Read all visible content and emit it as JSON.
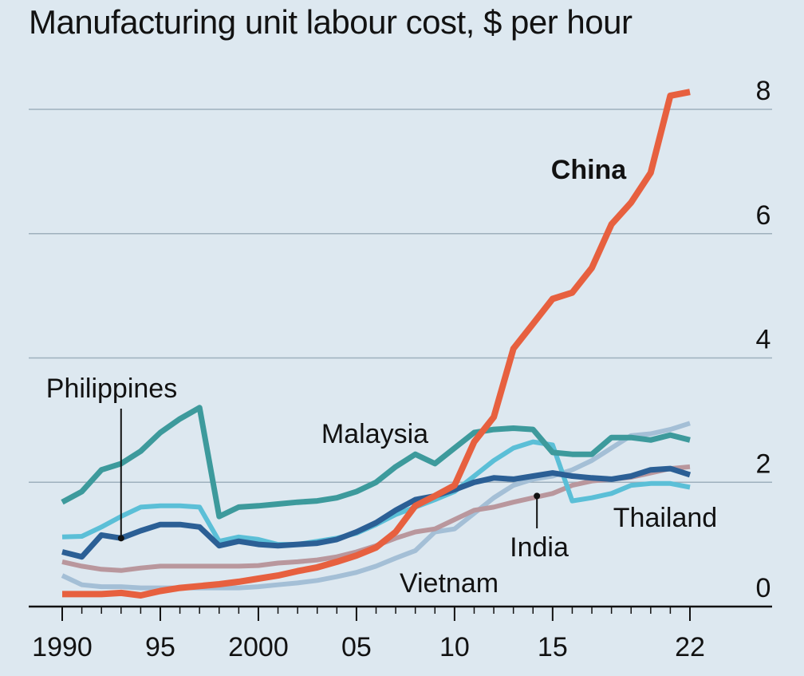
{
  "chart_data": {
    "type": "line",
    "title": "Manufacturing unit labour cost, $ per hour",
    "xlabel": "",
    "ylabel": "",
    "xlim": [
      1990,
      2022
    ],
    "ylim": [
      0,
      8
    ],
    "grid": true,
    "y_axis_side": "right",
    "x_ticks": [
      {
        "value": 1990,
        "label": "1990"
      },
      {
        "value": 1995,
        "label": "95"
      },
      {
        "value": 2000,
        "label": "2000"
      },
      {
        "value": 2005,
        "label": "05"
      },
      {
        "value": 2010,
        "label": "10"
      },
      {
        "value": 2015,
        "label": "15"
      },
      {
        "value": 2022,
        "label": "22"
      }
    ],
    "x_minor_ticks": [
      1991,
      1992,
      1993,
      1994,
      1996,
      1997,
      1998,
      1999,
      2001,
      2002,
      2003,
      2004,
      2006,
      2007,
      2008,
      2009,
      2011,
      2012,
      2013,
      2014,
      2016,
      2017,
      2018,
      2019,
      2020,
      2021
    ],
    "y_ticks": [
      {
        "value": 0,
        "label": "0"
      },
      {
        "value": 2,
        "label": "2"
      },
      {
        "value": 4,
        "label": "4"
      },
      {
        "value": 6,
        "label": "6"
      },
      {
        "value": 8,
        "label": "8"
      }
    ],
    "series": [
      {
        "name": "Vietnam",
        "color": "#a4bfd6",
        "width": 6,
        "x": [
          1990,
          1991,
          1992,
          1993,
          1994,
          1995,
          1996,
          1997,
          1998,
          1999,
          2000,
          2001,
          2002,
          2003,
          2004,
          2005,
          2006,
          2007,
          2008,
          2009,
          2010,
          2011,
          2012,
          2013,
          2014,
          2015,
          2016,
          2017,
          2018,
          2019,
          2020,
          2021,
          2022
        ],
        "values": [
          0.5,
          0.35,
          0.32,
          0.32,
          0.3,
          0.3,
          0.3,
          0.3,
          0.3,
          0.3,
          0.32,
          0.35,
          0.38,
          0.42,
          0.48,
          0.55,
          0.65,
          0.78,
          0.9,
          1.2,
          1.25,
          1.5,
          1.75,
          1.95,
          2.05,
          2.1,
          2.2,
          2.35,
          2.55,
          2.75,
          2.78,
          2.85,
          2.95
        ]
      },
      {
        "name": "India",
        "color": "#b9979d",
        "width": 6,
        "x": [
          1990,
          1991,
          1992,
          1993,
          1994,
          1995,
          1996,
          1997,
          1998,
          1999,
          2000,
          2001,
          2002,
          2003,
          2004,
          2005,
          2006,
          2007,
          2008,
          2009,
          2010,
          2011,
          2012,
          2013,
          2014,
          2015,
          2016,
          2017,
          2018,
          2019,
          2020,
          2021,
          2022
        ],
        "values": [
          0.72,
          0.65,
          0.6,
          0.58,
          0.62,
          0.65,
          0.65,
          0.65,
          0.65,
          0.65,
          0.66,
          0.7,
          0.72,
          0.75,
          0.8,
          0.88,
          0.98,
          1.1,
          1.2,
          1.25,
          1.4,
          1.55,
          1.6,
          1.68,
          1.75,
          1.82,
          1.95,
          2.02,
          2.05,
          2.08,
          2.15,
          2.22,
          2.25
        ]
      },
      {
        "name": "Thailand",
        "color": "#5bbfd7",
        "width": 6,
        "x": [
          1990,
          1991,
          1992,
          1993,
          1994,
          1995,
          1996,
          1997,
          1998,
          1999,
          2000,
          2001,
          2002,
          2003,
          2004,
          2005,
          2006,
          2007,
          2008,
          2009,
          2010,
          2011,
          2012,
          2013,
          2014,
          2015,
          2016,
          2017,
          2018,
          2019,
          2020,
          2021,
          2022
        ],
        "values": [
          1.12,
          1.13,
          1.28,
          1.45,
          1.6,
          1.62,
          1.62,
          1.6,
          1.05,
          1.12,
          1.08,
          1.0,
          1.0,
          1.05,
          1.1,
          1.18,
          1.32,
          1.48,
          1.6,
          1.72,
          1.85,
          2.1,
          2.35,
          2.55,
          2.65,
          2.6,
          1.7,
          1.75,
          1.82,
          1.95,
          1.98,
          1.98,
          1.92
        ]
      },
      {
        "name": "Philippines",
        "color": "#2b5f95",
        "width": 7,
        "x": [
          1990,
          1991,
          1992,
          1993,
          1994,
          1995,
          1996,
          1997,
          1998,
          1999,
          2000,
          2001,
          2002,
          2003,
          2004,
          2005,
          2006,
          2007,
          2008,
          2009,
          2010,
          2011,
          2012,
          2013,
          2014,
          2015,
          2016,
          2017,
          2018,
          2019,
          2020,
          2021,
          2022
        ],
        "values": [
          0.88,
          0.8,
          1.15,
          1.1,
          1.22,
          1.32,
          1.32,
          1.28,
          0.98,
          1.05,
          1.0,
          0.98,
          1.0,
          1.02,
          1.08,
          1.2,
          1.35,
          1.55,
          1.72,
          1.78,
          1.88,
          2.0,
          2.07,
          2.05,
          2.1,
          2.15,
          2.1,
          2.07,
          2.05,
          2.1,
          2.2,
          2.22,
          2.12
        ]
      },
      {
        "name": "Malaysia",
        "color": "#3d9a9c",
        "width": 7,
        "x": [
          1990,
          1991,
          1992,
          1993,
          1994,
          1995,
          1996,
          1997,
          1998,
          1999,
          2000,
          2001,
          2002,
          2003,
          2004,
          2005,
          2006,
          2007,
          2008,
          2009,
          2010,
          2011,
          2012,
          2013,
          2014,
          2015,
          2016,
          2017,
          2018,
          2019,
          2020,
          2021,
          2022
        ],
        "values": [
          1.68,
          1.85,
          2.2,
          2.3,
          2.5,
          2.8,
          3.02,
          3.2,
          1.45,
          1.6,
          1.62,
          1.65,
          1.68,
          1.7,
          1.75,
          1.85,
          2.0,
          2.25,
          2.45,
          2.3,
          2.55,
          2.8,
          2.85,
          2.87,
          2.85,
          2.48,
          2.45,
          2.45,
          2.72,
          2.72,
          2.68,
          2.76,
          2.68
        ]
      },
      {
        "name": "China",
        "color": "#e7603f",
        "width": 8,
        "x": [
          1990,
          1991,
          1992,
          1993,
          1994,
          1995,
          1996,
          1997,
          1998,
          1999,
          2000,
          2001,
          2002,
          2003,
          2004,
          2005,
          2006,
          2007,
          2008,
          2009,
          2010,
          2011,
          2012,
          2013,
          2014,
          2015,
          2016,
          2017,
          2018,
          2019,
          2020,
          2021,
          2022
        ],
        "values": [
          0.2,
          0.2,
          0.2,
          0.22,
          0.18,
          0.25,
          0.3,
          0.33,
          0.36,
          0.4,
          0.45,
          0.5,
          0.57,
          0.63,
          0.72,
          0.82,
          0.95,
          1.2,
          1.62,
          1.78,
          1.95,
          2.65,
          3.05,
          4.15,
          4.55,
          4.95,
          5.05,
          5.45,
          6.15,
          6.5,
          6.98,
          8.22,
          8.28
        ]
      }
    ],
    "annotations": [
      {
        "text": "China",
        "bold": true
      },
      {
        "text": "Malaysia"
      },
      {
        "text": "Philippines"
      },
      {
        "text": "Thailand"
      },
      {
        "text": "India"
      },
      {
        "text": "Vietnam"
      }
    ]
  }
}
